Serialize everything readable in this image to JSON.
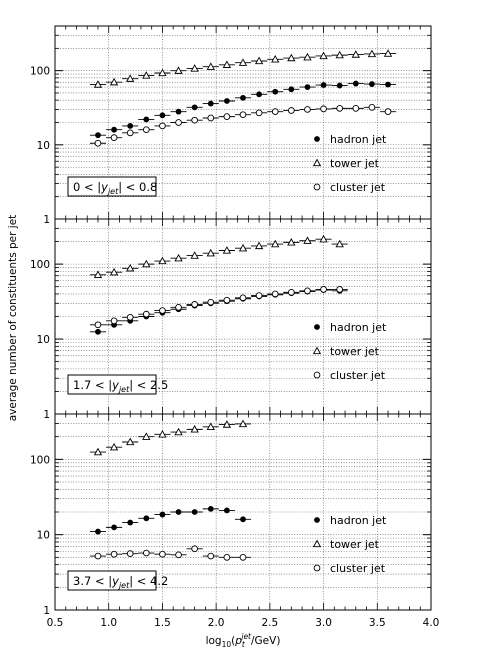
{
  "chart_data": {
    "type": "scatter",
    "ylabel": "average number of constituents per jet",
    "xlabel": "log₁₀(pₜʲᵉᵗ/GeV)",
    "xlim": [
      0.5,
      4.0
    ],
    "ylim": [
      1,
      400
    ],
    "y_scale": "log",
    "grid": "horizontal dotted",
    "legend_position": "right",
    "x_ticks": [
      "0.5",
      "1.0",
      "1.5",
      "2.0",
      "2.5",
      "3.0",
      "3.5",
      "4.0"
    ],
    "y_ticks": [
      "1",
      "10",
      "100"
    ],
    "legend": [
      {
        "label": "hadron jet",
        "marker": "filled-circle"
      },
      {
        "label": "tower jet",
        "marker": "open-triangle"
      },
      {
        "label": "cluster jet",
        "marker": "open-circle"
      }
    ],
    "panels": [
      {
        "region": "0 < |y_jet| < 0.8",
        "series": [
          {
            "name": "hadron jet",
            "marker": "filled-circle",
            "x": [
              0.9,
              1.05,
              1.2,
              1.35,
              1.5,
              1.65,
              1.8,
              1.95,
              2.1,
              2.25,
              2.4,
              2.55,
              2.7,
              2.85,
              3.0,
              3.15,
              3.3,
              3.45,
              3.6
            ],
            "y": [
              13.5,
              16,
              18,
              22,
              25,
              28,
              32,
              36,
              39,
              43,
              48,
              52,
              56,
              60,
              64,
              63,
              67,
              66,
              65
            ]
          },
          {
            "name": "tower jet",
            "marker": "open-triangle",
            "x": [
              0.9,
              1.05,
              1.2,
              1.35,
              1.5,
              1.65,
              1.8,
              1.95,
              2.1,
              2.25,
              2.4,
              2.55,
              2.7,
              2.85,
              3.0,
              3.15,
              3.3,
              3.45,
              3.6
            ],
            "y": [
              65,
              70,
              78,
              86,
              93,
              100,
              107,
              113,
              120,
              128,
              135,
              142,
              148,
              152,
              158,
              162,
              165,
              168,
              170
            ]
          },
          {
            "name": "cluster jet",
            "marker": "open-circle",
            "x": [
              0.9,
              1.05,
              1.2,
              1.35,
              1.5,
              1.65,
              1.8,
              1.95,
              2.1,
              2.25,
              2.4,
              2.55,
              2.7,
              2.85,
              3.0,
              3.15,
              3.3,
              3.45,
              3.6
            ],
            "y": [
              10.5,
              12.5,
              14.5,
              16,
              18,
              20,
              21.5,
              23,
              24,
              25.5,
              27,
              28,
              29,
              30,
              30.5,
              31,
              31,
              32,
              28
            ]
          }
        ]
      },
      {
        "region": "1.7 < |y_jet| < 2.5",
        "series": [
          {
            "name": "hadron jet",
            "marker": "filled-circle",
            "x": [
              0.9,
              1.05,
              1.2,
              1.35,
              1.5,
              1.65,
              1.8,
              1.95,
              2.1,
              2.25,
              2.4,
              2.55,
              2.7,
              2.85,
              3.0,
              3.15
            ],
            "y": [
              12.5,
              15.5,
              17.5,
              20,
              22.5,
              25,
              28,
              30,
              32,
              34.5,
              37,
              39,
              41,
              43,
              45,
              44
            ]
          },
          {
            "name": "tower jet",
            "marker": "open-triangle",
            "x": [
              0.9,
              1.05,
              1.2,
              1.35,
              1.5,
              1.65,
              1.8,
              1.95,
              2.1,
              2.25,
              2.4,
              2.55,
              2.7,
              2.85,
              3.0,
              3.15
            ],
            "y": [
              72,
              78,
              88,
              100,
              110,
              120,
              130,
              140,
              152,
              163,
              175,
              185,
              195,
              205,
              215,
              185
            ]
          },
          {
            "name": "cluster jet",
            "marker": "open-circle",
            "x": [
              0.9,
              1.05,
              1.2,
              1.35,
              1.5,
              1.65,
              1.8,
              1.95,
              2.1,
              2.25,
              2.4,
              2.55,
              2.7,
              2.85,
              3.0,
              3.15
            ],
            "y": [
              15.5,
              17.5,
              19.5,
              21.5,
              24,
              26.5,
              29,
              31,
              33,
              35.5,
              38,
              40,
              42,
              44,
              46,
              46
            ]
          }
        ]
      },
      {
        "region": "3.7 < |y_jet| < 4.2",
        "series": [
          {
            "name": "hadron jet",
            "marker": "filled-circle",
            "x": [
              0.9,
              1.05,
              1.2,
              1.35,
              1.5,
              1.65,
              1.8,
              1.95,
              2.1,
              2.25
            ],
            "y": [
              11,
              12.5,
              14.5,
              16.5,
              18.5,
              20,
              20,
              22,
              21,
              16
            ]
          },
          {
            "name": "tower jet",
            "marker": "open-triangle",
            "x": [
              0.9,
              1.05,
              1.2,
              1.35,
              1.5,
              1.65,
              1.8,
              1.95,
              2.1,
              2.25
            ],
            "y": [
              125,
              145,
              170,
              200,
              215,
              230,
              250,
              270,
              290,
              295
            ]
          },
          {
            "name": "cluster jet",
            "marker": "open-circle",
            "x": [
              0.9,
              1.05,
              1.2,
              1.35,
              1.5,
              1.65,
              1.8,
              1.95,
              2.1,
              2.25
            ],
            "y": [
              5.2,
              5.5,
              5.6,
              5.7,
              5.5,
              5.4,
              6.5,
              5.2,
              5.0,
              5.0
            ]
          }
        ]
      }
    ]
  }
}
